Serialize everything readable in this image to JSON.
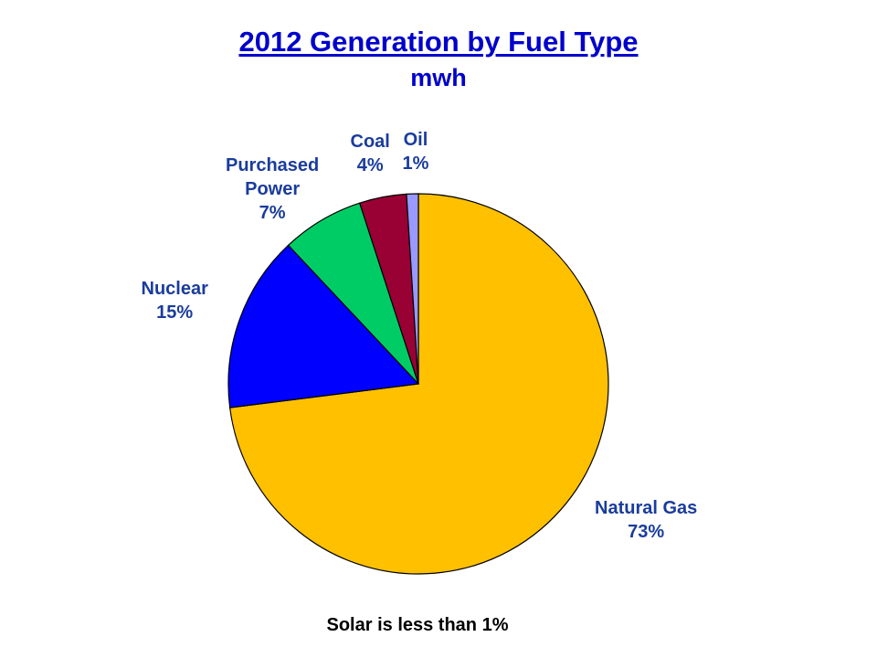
{
  "chart_data": {
    "type": "pie",
    "title": "2012 Generation by Fuel Type",
    "subtitle": "mwh",
    "slices": [
      {
        "name": "Natural Gas",
        "value": 73,
        "label_lines": [
          "Natural Gas",
          "73%"
        ],
        "color": "#ffc000"
      },
      {
        "name": "Nuclear",
        "value": 15,
        "label_lines": [
          "Nuclear",
          "15%"
        ],
        "color": "#0000ff"
      },
      {
        "name": "Purchased Power",
        "value": 7,
        "label_lines": [
          "Purchased",
          "Power",
          "7%"
        ],
        "color": "#00cc66"
      },
      {
        "name": "Coal",
        "value": 4,
        "label_lines": [
          "Coal",
          "4%"
        ],
        "color": "#990033"
      },
      {
        "name": "Oil",
        "value": 1,
        "label_lines": [
          "Oil",
          "1%"
        ],
        "color": "#9999ff"
      }
    ],
    "footnote": "Solar is less than 1%"
  }
}
